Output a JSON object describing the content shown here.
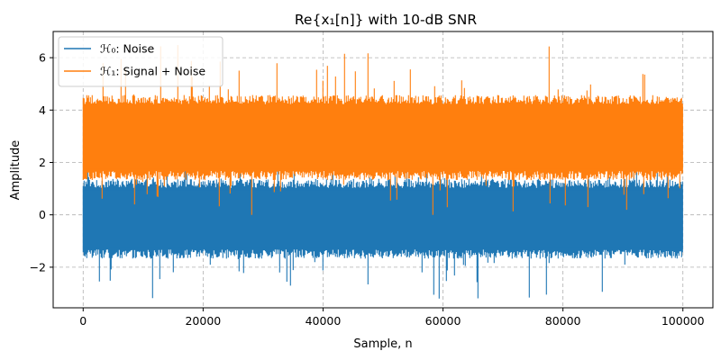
{
  "chart_data": {
    "type": "line",
    "title": "Re{x₁[n]} with 10-dB SNR",
    "xlabel": "Sample, n",
    "ylabel": "Amplitude",
    "xlim": [
      -5000,
      105000
    ],
    "ylim": [
      -3.55,
      7.0
    ],
    "xticks": [
      0,
      20000,
      40000,
      60000,
      80000,
      100000
    ],
    "yticks": [
      -2,
      0,
      2,
      4,
      6
    ],
    "grid": true,
    "legend_position": "top-left",
    "series": [
      {
        "name": "ℋ₀: Noise",
        "color": "#1f77b4",
        "x_range": [
          0,
          100000
        ],
        "center": 0.0,
        "typical_low": -1.5,
        "typical_high": 1.2,
        "min": -3.2,
        "max": 1.85
      },
      {
        "name": "ℋ₁: Signal + Noise",
        "color": "#ff7f0e",
        "x_range": [
          0,
          100000
        ],
        "center": 3.0,
        "typical_low": 1.5,
        "typical_high": 4.4,
        "min": 0.0,
        "max": 6.5
      }
    ]
  }
}
